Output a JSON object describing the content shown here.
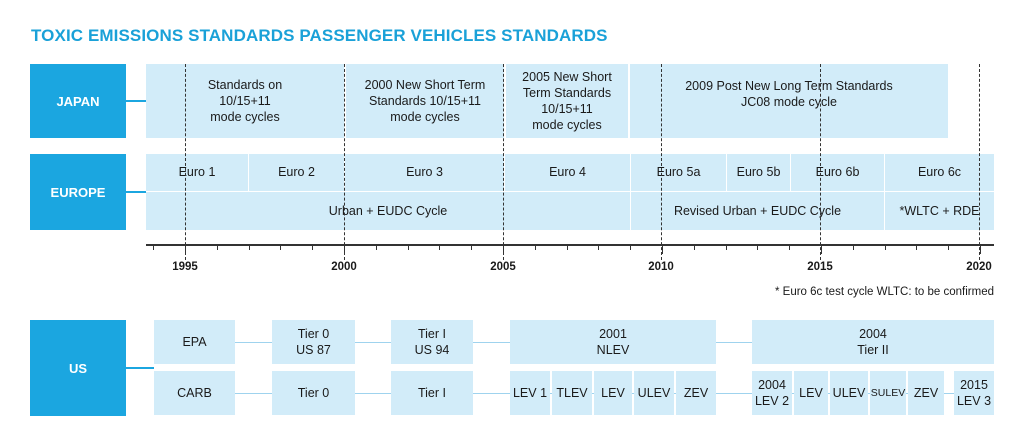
{
  "title": "TOXIC EMISSIONS STANDARDS PASSENGER VEHICLES STANDARDS",
  "regions": {
    "japan": "JAPAN",
    "europe": "EUROPE",
    "us": "US"
  },
  "japan": [
    "Standards on\n10/15+11\nmode cycles",
    "2000 New Short Term\nStandards 10/15+11\nmode cycles",
    "2005 New Short\nTerm Standards\n10/15+11\nmode cycles",
    "2009 Post New Long Term Standards\nJC08 mode cycle"
  ],
  "europe": {
    "standards": [
      "Euro 1",
      "Euro 2",
      "Euro 3",
      "Euro 4",
      "Euro 5a",
      "Euro 5b",
      "Euro 6b",
      "Euro 6c"
    ],
    "cycles": [
      "Urban + EUDC Cycle",
      "Revised Urban + EUDC Cycle",
      "*WLTC + RDE"
    ]
  },
  "axis": {
    "years": [
      "1995",
      "2000",
      "2005",
      "2010",
      "2015",
      "2020"
    ]
  },
  "note": "* Euro 6c test cycle WLTC: to be confirmed",
  "us": {
    "epa": [
      "EPA",
      "Tier 0\nUS 87",
      "Tier I\nUS 94",
      "2001\nNLEV",
      "2004\nTier II"
    ],
    "carb": [
      "CARB",
      "Tier 0",
      "Tier I",
      "LEV 1",
      "TLEV",
      "LEV",
      "ULEV",
      "ZEV",
      "2004\nLEV 2",
      "LEV",
      "ULEV",
      "SULEV",
      "ZEV",
      "2015\nLEV 3"
    ]
  },
  "colors": {
    "accent": "#1ba6e0",
    "box": "#d2ecf9",
    "title": "#1aa1d8"
  }
}
